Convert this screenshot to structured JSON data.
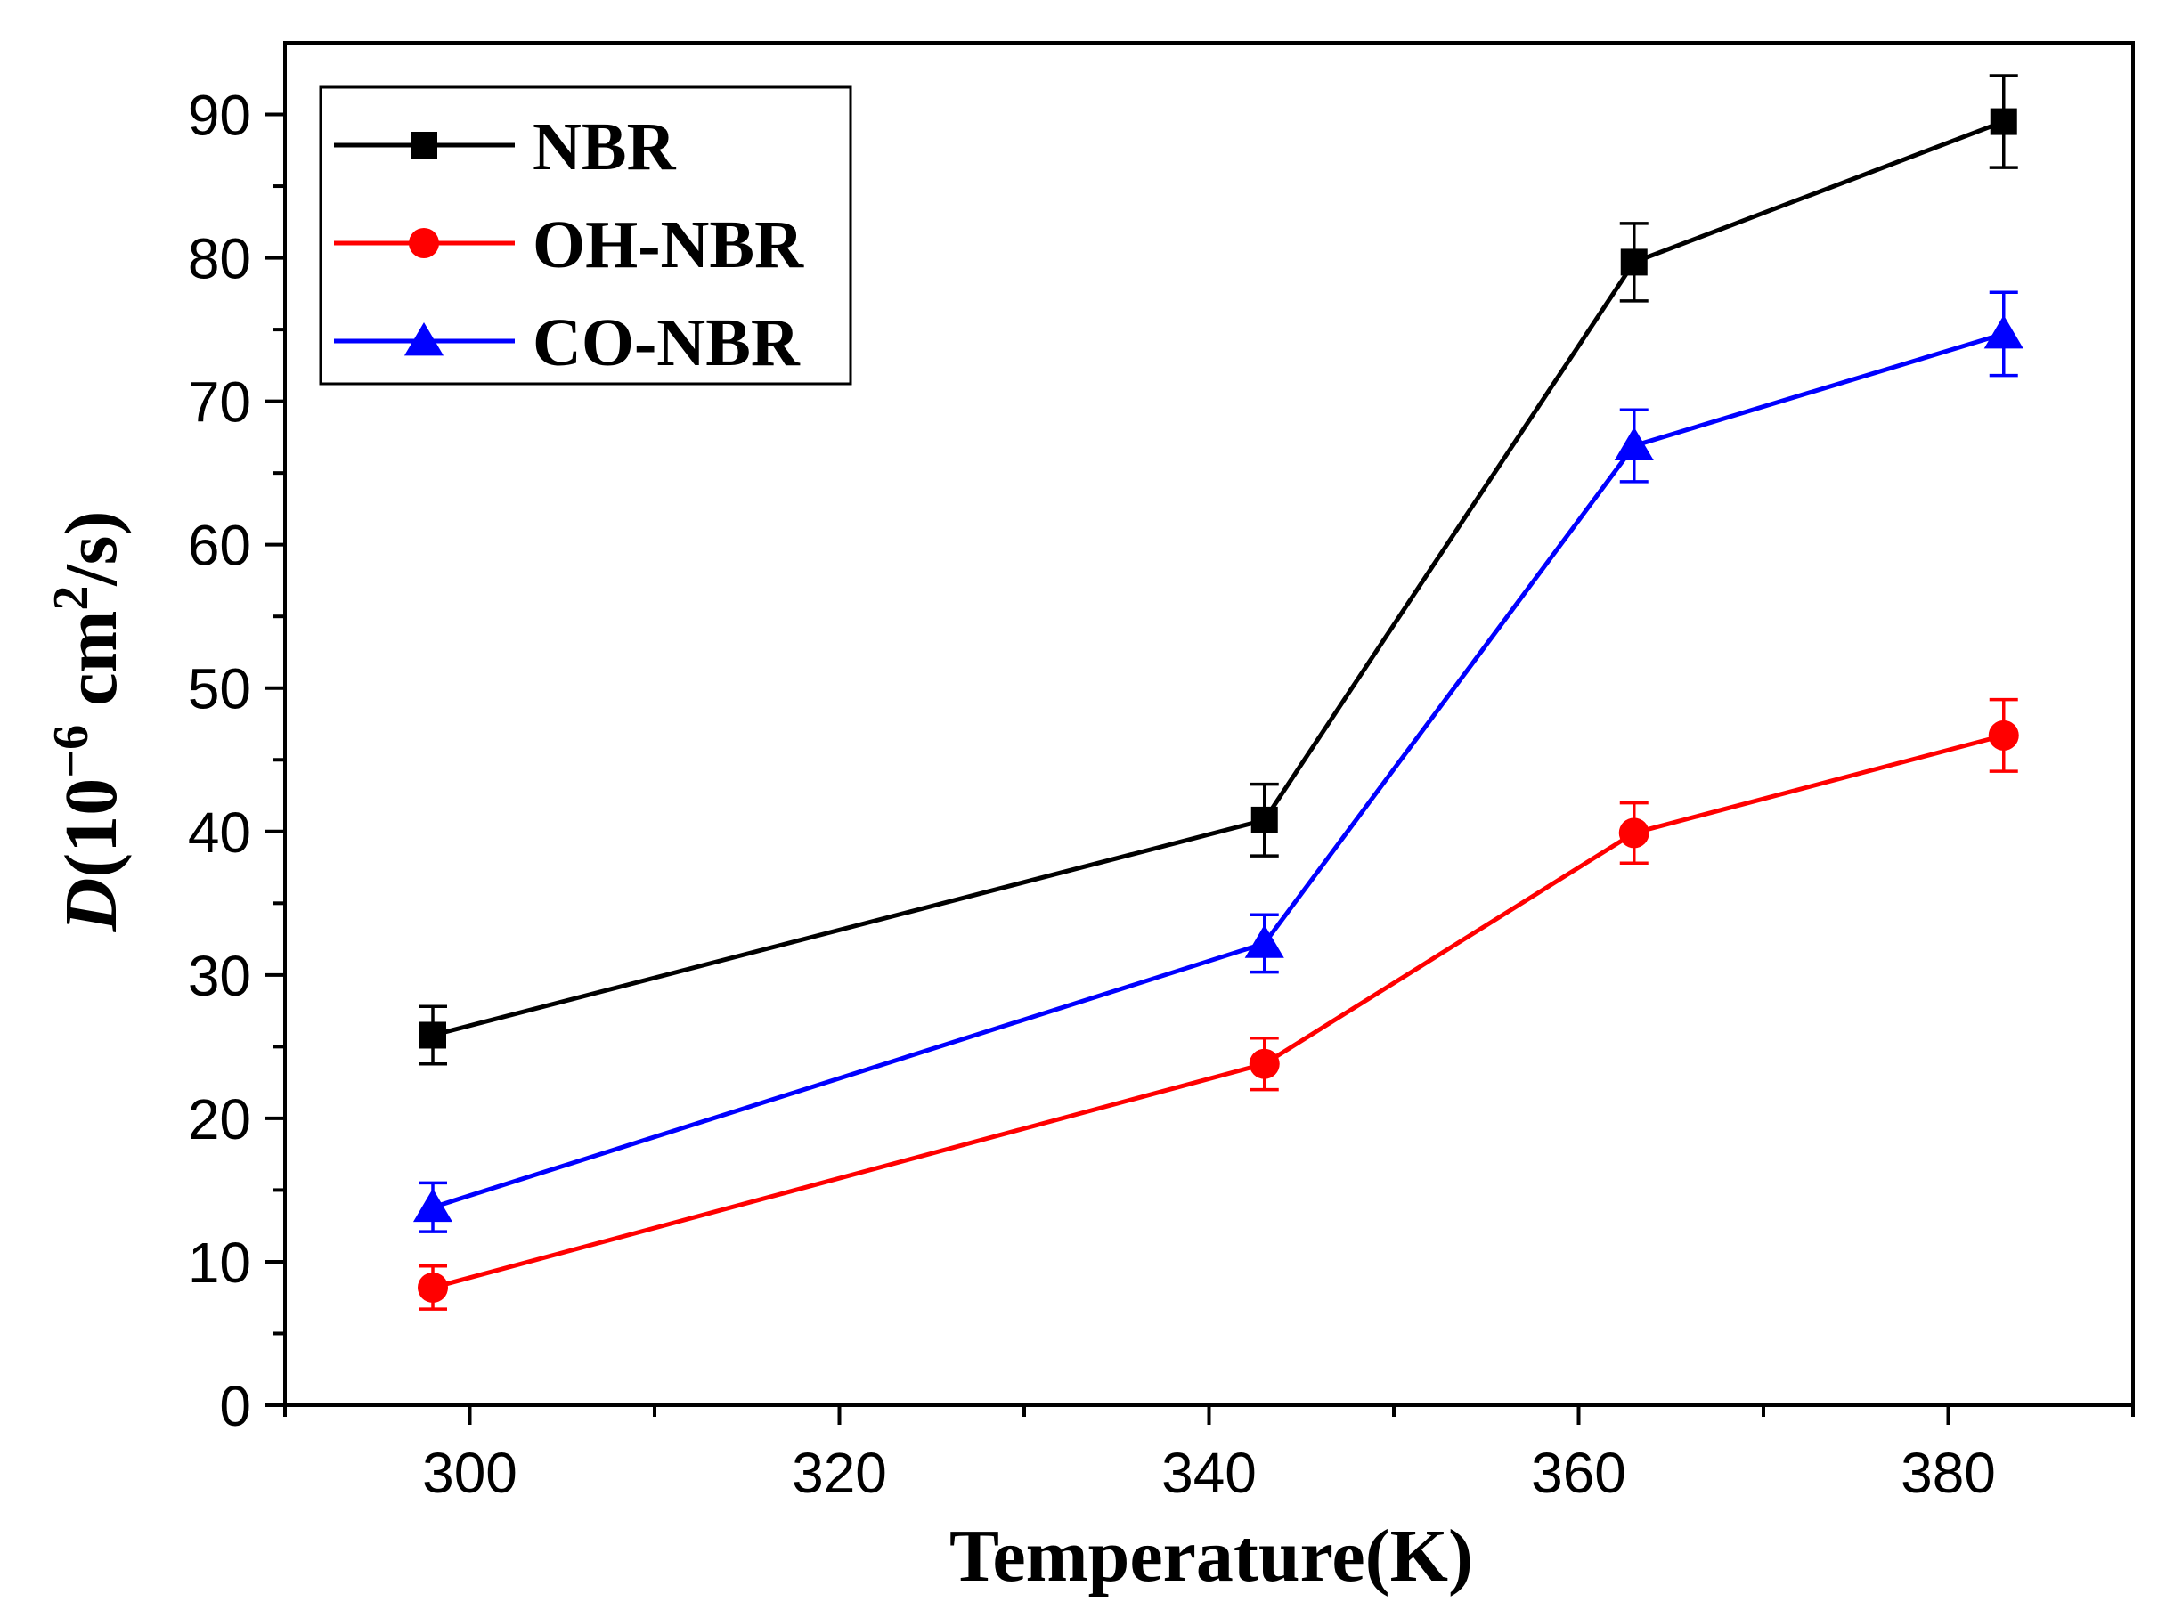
{
  "chart_data": {
    "type": "line",
    "title": "",
    "xlabel": "Temperature(K)",
    "ylabel": {
      "var": "D",
      "open": "(",
      "base": "10",
      "exp": "−6",
      "unit": " cm",
      "unit_exp": "2",
      "close": "/s)"
    },
    "xlim": [
      290,
      390
    ],
    "ylim": [
      0,
      95
    ],
    "x_major_ticks": [
      300,
      320,
      340,
      360,
      380
    ],
    "x_minor_ticks": [
      290,
      310,
      330,
      350,
      370,
      390
    ],
    "y_major_ticks": [
      0,
      10,
      20,
      30,
      40,
      50,
      60,
      70,
      80,
      90
    ],
    "y_minor_ticks": [
      5,
      15,
      25,
      35,
      45,
      55,
      65,
      75,
      85
    ],
    "grid": false,
    "legend_position": "top-left",
    "x": [
      298,
      343,
      363,
      383
    ],
    "series": [
      {
        "name": "NBR",
        "color": "#000000",
        "marker": "square",
        "values": [
          25.8,
          40.8,
          79.7,
          89.5
        ],
        "errors": [
          2.0,
          2.5,
          2.7,
          3.2
        ]
      },
      {
        "name": "OH-NBR",
        "color": "#ff0000",
        "marker": "circle",
        "values": [
          8.2,
          23.8,
          39.9,
          46.7
        ],
        "errors": [
          1.5,
          1.8,
          2.1,
          2.5
        ]
      },
      {
        "name": "CO-NBR",
        "color": "#0000ff",
        "marker": "triangle",
        "values": [
          13.8,
          32.2,
          66.9,
          74.7
        ],
        "errors": [
          1.7,
          2.0,
          2.5,
          2.9
        ]
      }
    ]
  }
}
